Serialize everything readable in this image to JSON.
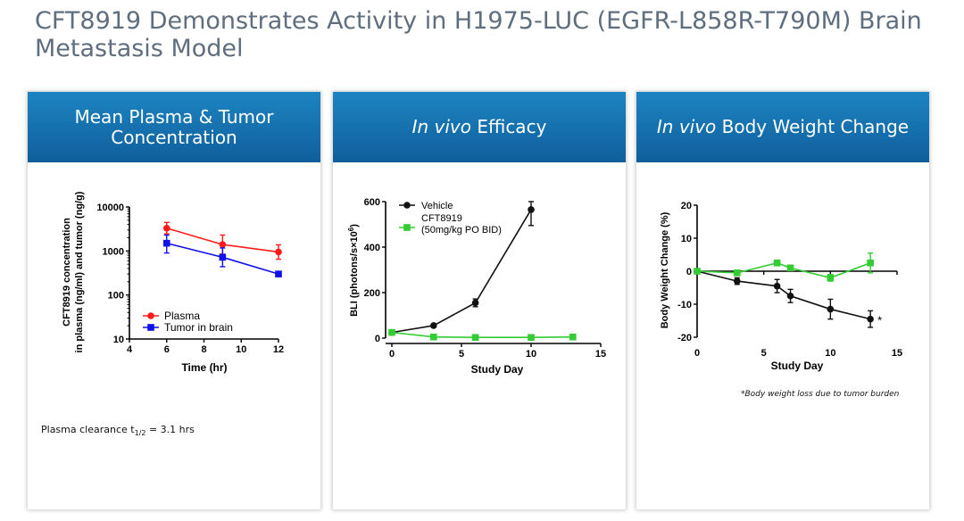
{
  "page": {
    "title_line1": "CFT8919 Demonstrates Activity in H1975-LUC (EGFR-L858R-T790M) Brain",
    "title_line2": "Metastasis Model"
  },
  "panels": [
    {
      "title_line1": "Mean Plasma & Tumor",
      "title_line2": "Concentration"
    },
    {
      "title_italic": "In vivo",
      "title_rest": " Efficacy"
    },
    {
      "title_italic": "In vivo",
      "title_rest": " Body Weight Change"
    }
  ],
  "notes": {
    "clearance_prefix": "Plasma clearance t",
    "clearance_sub": "1/2",
    "clearance_suffix": " = 3.1 hrs",
    "weight_footnote": "*Body weight loss due to tumor burden"
  },
  "colors": {
    "red": "#ff1a1a",
    "blue": "#1010e8",
    "black": "#111111",
    "green": "#33cc33",
    "header": "#1776b4"
  },
  "chart_data": [
    {
      "type": "line",
      "title": "Mean Plasma & Tumor Concentration",
      "xlabel": "Time (hr)",
      "ylabel_line1": "CFT8919 concentration",
      "ylabel_line2": "in plasma (ng/ml) and tumor (ng/g)",
      "yscale": "log",
      "xlim": [
        4,
        12
      ],
      "ylim": [
        10,
        10000
      ],
      "xticks": [
        "4",
        "6",
        "8",
        "10",
        "12"
      ],
      "yticks": [
        "10",
        "100",
        "1000",
        "10000"
      ],
      "series": [
        {
          "name": "Plasma",
          "color": "#ff1a1a",
          "marker": "circle",
          "x": [
            6,
            9,
            12
          ],
          "y": [
            3300,
            1400,
            950
          ],
          "err": [
            [
              2450,
              4450
            ],
            [
              850,
              2300
            ],
            [
              650,
              1380
            ]
          ]
        },
        {
          "name": "Tumor in brain",
          "color": "#1010e8",
          "marker": "square",
          "x": [
            6,
            9,
            12
          ],
          "y": [
            1500,
            720,
            300
          ],
          "err": [
            [
              900,
              2300
            ],
            [
              440,
              1170
            ],
            [
              300,
              300
            ]
          ]
        }
      ]
    },
    {
      "type": "line",
      "title": "In vivo Efficacy",
      "xlabel": "Study Day",
      "ylabel": "BLI (photons/s×10",
      "ylabel_sup": "6",
      "ylabel_end": ")",
      "xlim": [
        0,
        15
      ],
      "ylim": [
        0,
        600
      ],
      "xticks": [
        "0",
        "5",
        "10",
        "15"
      ],
      "yticks": [
        "0",
        "200",
        "400",
        "600"
      ],
      "series": [
        {
          "name": "Vehicle",
          "color": "#111111",
          "marker": "circle",
          "x": [
            0,
            3,
            6,
            10
          ],
          "y": [
            25,
            55,
            155,
            565
          ],
          "err": [
            [
              20,
              30
            ],
            [
              50,
              60
            ],
            [
              138,
              172
            ],
            [
              495,
              600
            ]
          ]
        },
        {
          "name": "CFT8919",
          "name_line2": "(50mg/kg PO BID)",
          "color": "#33cc33",
          "marker": "square",
          "x": [
            0,
            3,
            6,
            10,
            13
          ],
          "y": [
            25,
            5,
            3,
            3,
            5
          ],
          "err": [
            [
              20,
              30
            ],
            [
              2,
              8
            ],
            [
              1,
              5
            ],
            [
              1,
              5
            ],
            [
              2,
              8
            ]
          ]
        }
      ]
    },
    {
      "type": "line",
      "title": "In vivo Body Weight Change",
      "xlabel": "Study Day",
      "ylabel": "Body Weight Change (%)",
      "xlim": [
        0,
        15
      ],
      "ylim": [
        -20,
        20
      ],
      "xticks": [
        "0",
        "5",
        "10",
        "15"
      ],
      "yticks": [
        "-20",
        "-10",
        "0",
        "10",
        "20"
      ],
      "annotation": "*",
      "series": [
        {
          "name": "Vehicle",
          "color": "#111111",
          "marker": "circle",
          "x": [
            0,
            3,
            6,
            7,
            10,
            13
          ],
          "y": [
            0,
            -3,
            -4.5,
            -7.5,
            -11.5,
            -14.5
          ],
          "err": [
            [
              0,
              0
            ],
            [
              -4,
              -2
            ],
            [
              -6.5,
              -2.5
            ],
            [
              -9.5,
              -5.5
            ],
            [
              -14.5,
              -8.5
            ],
            [
              -17,
              -12
            ]
          ]
        },
        {
          "name": "CFT8919",
          "color": "#33cc33",
          "marker": "square",
          "x": [
            0,
            3,
            6,
            7,
            10,
            13
          ],
          "y": [
            0,
            -0.5,
            2.5,
            1,
            -2,
            2.5
          ],
          "err": [
            [
              0,
              0
            ],
            [
              -0.5,
              -0.5
            ],
            [
              2.5,
              2.5
            ],
            [
              1,
              1
            ],
            [
              -3,
              -1
            ],
            [
              -0.5,
              5.5
            ]
          ]
        }
      ]
    }
  ]
}
